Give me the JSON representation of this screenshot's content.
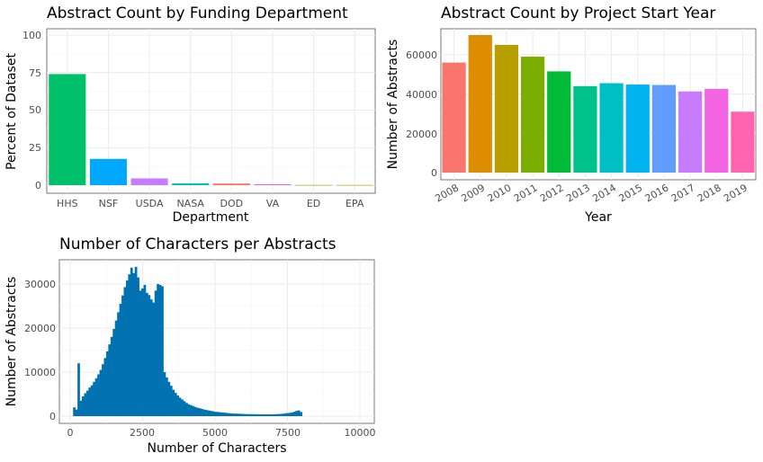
{
  "chart_data": [
    {
      "type": "bar",
      "title": "Abstract Count by Funding Department",
      "xlabel": "Department",
      "ylabel": "Percent of Dataset",
      "ylim": [
        0,
        100
      ],
      "yticks": [
        "0",
        "25",
        "50",
        "75",
        "100"
      ],
      "categories": [
        "HHS",
        "NSF",
        "USDA",
        "NASA",
        "DOD",
        "VA",
        "ED",
        "EPA"
      ],
      "values": [
        74,
        17.5,
        4.5,
        1.2,
        1.1,
        0.6,
        0.1,
        0.1
      ],
      "colors": [
        "#00C06A",
        "#00A9FF",
        "#C77CFF",
        "#00BFC4",
        "#F8766D",
        "#FF61CC",
        "#7CAE00",
        "#CD9600"
      ],
      "grid": true
    },
    {
      "type": "bar",
      "title": "Abstract Count by Project Start Year",
      "xlabel": "Year",
      "ylabel": "Number of Abstracts",
      "ylim": [
        0,
        72000
      ],
      "yticks": [
        "0",
        "20000",
        "40000",
        "60000"
      ],
      "categories": [
        "2008",
        "2009",
        "2010",
        "2011",
        "2012",
        "2013",
        "2014",
        "2015",
        "2016",
        "2017",
        "2018",
        "2019"
      ],
      "values": [
        56000,
        70000,
        65000,
        59000,
        51500,
        44000,
        45500,
        44800,
        44600,
        41300,
        42600,
        31000
      ],
      "colors": [
        "#F8766D",
        "#DE8C00",
        "#B79F00",
        "#7CAE00",
        "#00BA38",
        "#00C08B",
        "#00BFC4",
        "#00B4F0",
        "#619CFF",
        "#C77CFF",
        "#F564E3",
        "#FF64B0"
      ],
      "grid": true
    },
    {
      "type": "histogram",
      "title": "Number of Characters per Abstracts",
      "xlabel": "Number of Characters",
      "ylabel": "Number of Abstracts",
      "xlim": [
        -300,
        10500
      ],
      "ylim": [
        -1500,
        35500
      ],
      "xticks": [
        "0",
        "2500",
        "5000",
        "7500",
        "10000"
      ],
      "yticks": [
        "0",
        "10000",
        "20000",
        "30000"
      ],
      "color": "#0072B2",
      "bin_width": 76,
      "bin_start": 100,
      "counts": [
        2000,
        1500,
        12000,
        3500,
        4500,
        5200,
        5800,
        6500,
        7000,
        7800,
        8600,
        9500,
        10500,
        11800,
        13200,
        14700,
        16300,
        18000,
        19800,
        21700,
        23600,
        25500,
        27400,
        29300,
        30800,
        32200,
        33700,
        32500,
        33900,
        31500,
        28500,
        29000,
        29800,
        28000,
        27500,
        26500,
        25800,
        28500,
        30000,
        29800,
        29500,
        10000,
        8800,
        7800,
        6900,
        6000,
        5300,
        4700,
        4200,
        3800,
        3400,
        3000,
        2700,
        2500,
        2300,
        2100,
        1900,
        1800,
        1650,
        1500,
        1400,
        1300,
        1200,
        1100,
        1000,
        950,
        900,
        850,
        800,
        750,
        700,
        650,
        600,
        580,
        560,
        540,
        520,
        500,
        480,
        460,
        450,
        450,
        440,
        430,
        420,
        410,
        400,
        400,
        400,
        400,
        420,
        440,
        460,
        480,
        500,
        560,
        650,
        700,
        750,
        850,
        1000,
        1200,
        1300,
        950
      ]
    }
  ]
}
